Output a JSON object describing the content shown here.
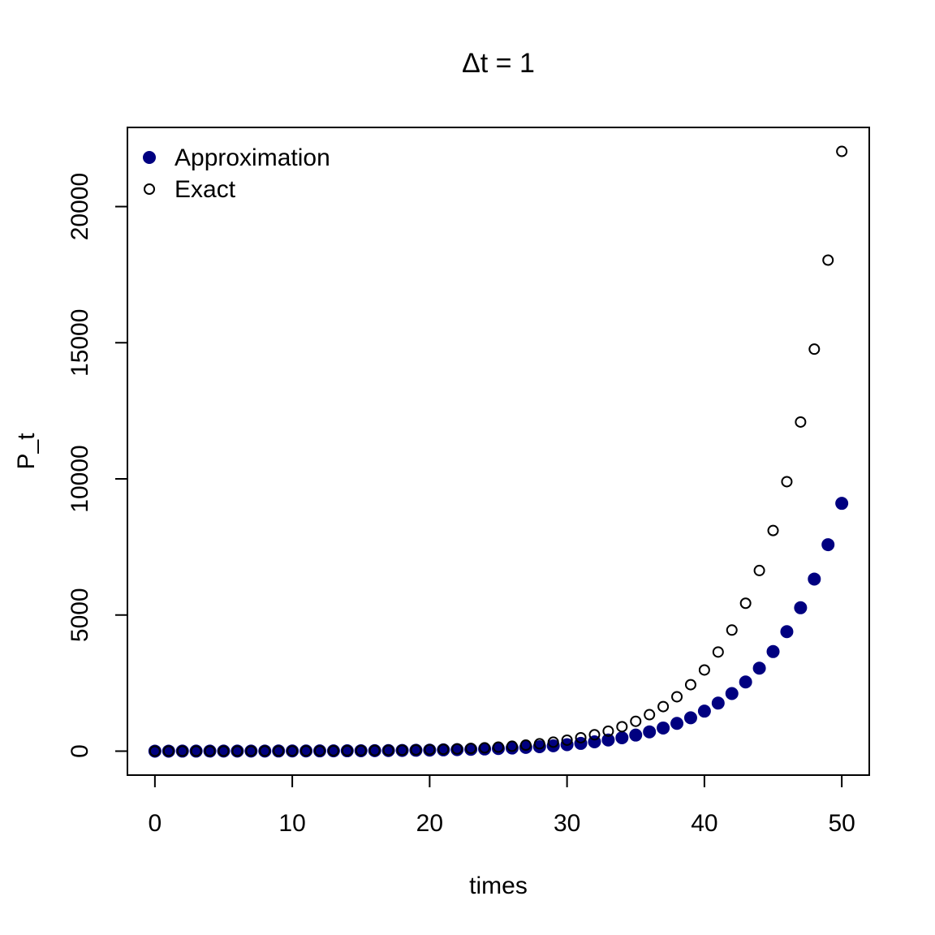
{
  "chart_data": {
    "type": "scatter",
    "title": "Δt = 1",
    "x_label": "times",
    "y_label": "P_t",
    "x": [
      0,
      1,
      2,
      3,
      4,
      5,
      6,
      7,
      8,
      9,
      10,
      11,
      12,
      13,
      14,
      15,
      16,
      17,
      18,
      19,
      20,
      21,
      22,
      23,
      24,
      25,
      26,
      27,
      28,
      29,
      30,
      31,
      32,
      33,
      34,
      35,
      36,
      37,
      38,
      39,
      40,
      41,
      42,
      43,
      44,
      45,
      46,
      47,
      48,
      49,
      50
    ],
    "series": [
      {
        "name": "Approximation",
        "color": "#000080",
        "filled": true,
        "values": [
          1,
          1.2,
          1.44,
          1.73,
          2.07,
          2.49,
          2.99,
          3.58,
          4.3,
          5.16,
          6.19,
          7.43,
          8.92,
          10.7,
          12.84,
          15.41,
          18.49,
          22.19,
          26.62,
          31.95,
          38.34,
          46.01,
          55.21,
          66.25,
          79.5,
          95.4,
          114.48,
          137.37,
          164.84,
          197.81,
          237.38,
          284.85,
          341.82,
          410.19,
          492.22,
          590.67,
          708.8,
          850.56,
          1020.67,
          1224.81,
          1469.77,
          1763.73,
          2116.47,
          2539.77,
          3047.72,
          3657.26,
          4388.71,
          5266.46,
          6319.75,
          7583.7,
          9100.44
        ]
      },
      {
        "name": "Exact",
        "color": "#000000",
        "filled": false,
        "values": [
          1,
          1.22,
          1.49,
          1.82,
          2.23,
          2.72,
          3.32,
          4.06,
          4.95,
          6.05,
          7.39,
          9.03,
          11.02,
          13.46,
          16.44,
          20.09,
          24.53,
          29.96,
          36.6,
          44.7,
          54.6,
          66.69,
          81.45,
          99.48,
          121.51,
          148.41,
          181.27,
          221.41,
          270.43,
          330.3,
          403.43,
          492.75,
          601.85,
          735.1,
          897.85,
          1096.63,
          1339.43,
          1635.98,
          1998.2,
          2440.6,
          2980.96,
          3640.95,
          4447.07,
          5431.66,
          6634.24,
          8103.08,
          9897.13,
          12088.38,
          14764.78,
          18033.74,
          22026.47
        ]
      }
    ],
    "xlim": [
      -2,
      52
    ],
    "ylim": [
      -880.02,
      22907.49
    ],
    "xticks": [
      0,
      10,
      20,
      30,
      40,
      50
    ],
    "yticks": [
      0,
      5000,
      10000,
      15000,
      20000
    ],
    "legend": "top-left"
  }
}
